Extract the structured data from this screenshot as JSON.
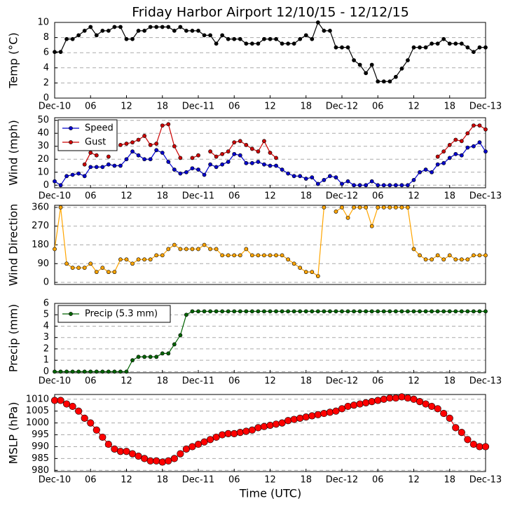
{
  "chart_data": [
    {
      "type": "line",
      "title": "Friday Harbor Airport 12/10/15 - 12/12/15",
      "ylabel": "Temp (°C)",
      "x": [
        0,
        1,
        2,
        3,
        4,
        5,
        6,
        7,
        8,
        9,
        10,
        11,
        12,
        13,
        14,
        15,
        16,
        17,
        18,
        19,
        20,
        21,
        22,
        23,
        24,
        25,
        26,
        27,
        28,
        29,
        30,
        31,
        32,
        33,
        34,
        35,
        36,
        37,
        38,
        39,
        40,
        41,
        42,
        43,
        44,
        45,
        46,
        47,
        48,
        49,
        50,
        51,
        52,
        53,
        54,
        55,
        56,
        57,
        58,
        59,
        60,
        61,
        62,
        63,
        64,
        65,
        66,
        67,
        68,
        69,
        70,
        71,
        72
      ],
      "series": [
        {
          "name": "Temp",
          "color": "#000000",
          "values": [
            6.1,
            6.1,
            7.8,
            7.8,
            8.3,
            8.9,
            9.4,
            8.3,
            8.9,
            8.9,
            9.4,
            9.4,
            7.8,
            7.8,
            8.9,
            8.9,
            9.4,
            9.4,
            9.4,
            9.4,
            8.9,
            9.4,
            8.9,
            8.9,
            8.9,
            8.3,
            8.3,
            7.2,
            8.3,
            7.8,
            7.8,
            7.8,
            7.2,
            7.2,
            7.2,
            7.8,
            7.8,
            7.8,
            7.2,
            7.2,
            7.2,
            7.8,
            8.3,
            7.8,
            10,
            8.9,
            8.9,
            6.7,
            6.7,
            6.7,
            5,
            4.4,
            3.3,
            4.4,
            2.2,
            2.2,
            2.2,
            2.8,
            3.9,
            5,
            6.7,
            6.7,
            6.7,
            7.2,
            7.2,
            7.8,
            7.2,
            7.2,
            7.2,
            6.7,
            6.1,
            6.7,
            6.7
          ]
        }
      ],
      "xlim": [
        0,
        72
      ],
      "xticks": [
        {
          "value": 0,
          "label": "Dec-10"
        },
        {
          "value": 6,
          "label": "06"
        },
        12,
        18,
        {
          "value": 24,
          "label": "Dec-11"
        },
        {
          "value": 30,
          "label": "06"
        },
        {
          "value": 36,
          "label": "12"
        },
        {
          "value": 42,
          "label": "18"
        },
        {
          "value": 48,
          "label": "Dec-12"
        },
        {
          "value": 54,
          "label": "06"
        },
        {
          "value": 60,
          "label": "12"
        },
        {
          "value": 66,
          "label": "18"
        },
        {
          "value": 72,
          "label": "Dec-13"
        }
      ],
      "ylim": [
        0,
        10
      ],
      "yticks": [
        0,
        2,
        4,
        6,
        8,
        10
      ],
      "grid": true
    },
    {
      "type": "line",
      "ylabel": "Wind (mph)",
      "x": [
        0,
        1,
        2,
        3,
        4,
        5,
        6,
        7,
        8,
        9,
        10,
        11,
        12,
        13,
        14,
        15,
        16,
        17,
        18,
        19,
        20,
        21,
        22,
        23,
        24,
        25,
        26,
        27,
        28,
        29,
        30,
        31,
        32,
        33,
        34,
        35,
        36,
        37,
        38,
        39,
        40,
        41,
        42,
        43,
        44,
        45,
        46,
        47,
        48,
        49,
        50,
        51,
        52,
        53,
        54,
        55,
        56,
        57,
        58,
        59,
        60,
        61,
        62,
        63,
        64,
        65,
        66,
        67,
        68,
        69,
        70,
        71,
        72
      ],
      "series": [
        {
          "name": "Speed",
          "color": "#0000cc",
          "values": [
            3,
            0,
            7,
            8,
            9,
            7,
            14,
            14,
            14,
            16,
            15,
            15,
            20,
            26,
            23,
            20,
            20,
            27,
            25,
            18,
            12,
            9,
            10,
            13,
            12,
            8,
            16,
            14,
            16,
            18,
            24,
            23,
            17,
            17,
            18,
            16,
            15,
            15,
            12,
            9,
            7,
            7,
            5,
            6,
            1,
            4,
            7,
            6,
            1,
            3,
            0,
            0,
            0,
            3,
            0,
            0,
            0,
            0,
            0,
            0,
            4,
            10,
            12,
            10,
            16,
            17,
            21,
            24,
            23,
            29,
            30,
            33,
            26
          ]
        },
        {
          "name": "Gust",
          "color": "#cc0000",
          "values": [
            null,
            null,
            null,
            null,
            null,
            16,
            25,
            23,
            null,
            22,
            null,
            31,
            32,
            33,
            35,
            38,
            31,
            32,
            46,
            47,
            30,
            21,
            null,
            21,
            23,
            null,
            26,
            22,
            24,
            26,
            33,
            34,
            31,
            28,
            26,
            34,
            25,
            21,
            null,
            null,
            null,
            null,
            null,
            null,
            null,
            null,
            null,
            null,
            null,
            null,
            null,
            null,
            null,
            null,
            null,
            null,
            null,
            null,
            null,
            null,
            null,
            null,
            null,
            null,
            22,
            26,
            31,
            35,
            34,
            40,
            46,
            46,
            43
          ]
        }
      ],
      "legend": "upper left",
      "xlim": [
        0,
        72
      ],
      "xticks": [
        {
          "value": 0,
          "label": "Dec-10"
        },
        {
          "value": 6,
          "label": "06"
        },
        12,
        18,
        {
          "value": 24,
          "label": "Dec-11"
        },
        {
          "value": 30,
          "label": "06"
        },
        {
          "value": 36,
          "label": "12"
        },
        {
          "value": 42,
          "label": "18"
        },
        {
          "value": 48,
          "label": "Dec-12"
        },
        {
          "value": 54,
          "label": "06"
        },
        {
          "value": 60,
          "label": "12"
        },
        {
          "value": 66,
          "label": "18"
        },
        {
          "value": 72,
          "label": "Dec-13"
        }
      ],
      "ylim": [
        -2,
        52
      ],
      "yticks": [
        0,
        10,
        20,
        30,
        40,
        50
      ],
      "grid": true
    },
    {
      "type": "line",
      "ylabel": "Wind Direction",
      "x": [
        0,
        1,
        2,
        3,
        4,
        5,
        6,
        7,
        8,
        9,
        10,
        11,
        12,
        13,
        14,
        15,
        16,
        17,
        18,
        19,
        20,
        21,
        22,
        23,
        24,
        25,
        26,
        27,
        28,
        29,
        30,
        31,
        32,
        33,
        34,
        35,
        36,
        37,
        38,
        39,
        40,
        41,
        42,
        43,
        44,
        45,
        46,
        47,
        48,
        49,
        50,
        51,
        52,
        53,
        54,
        55,
        56,
        57,
        58,
        59,
        60,
        61,
        62,
        63,
        64,
        65,
        66,
        67,
        68,
        69,
        70,
        71,
        72
      ],
      "series": [
        {
          "name": "Direction",
          "color": "#ffa500",
          "values": [
            160,
            360,
            90,
            70,
            70,
            70,
            90,
            50,
            70,
            50,
            50,
            110,
            110,
            90,
            110,
            110,
            110,
            130,
            130,
            160,
            180,
            160,
            160,
            160,
            160,
            180,
            160,
            160,
            130,
            130,
            130,
            130,
            160,
            130,
            130,
            130,
            130,
            130,
            130,
            110,
            90,
            70,
            50,
            50,
            30,
            360,
            null,
            340,
            360,
            310,
            360,
            360,
            360,
            270,
            360,
            360,
            360,
            360,
            360,
            360,
            160,
            130,
            110,
            110,
            130,
            110,
            130,
            110,
            110,
            110,
            130,
            130,
            130
          ]
        }
      ],
      "xlim": [
        0,
        72
      ],
      "ylim": [
        -10,
        370
      ],
      "yticks": [
        0,
        90,
        180,
        270,
        360
      ],
      "grid": true
    },
    {
      "type": "line",
      "ylabel": "Precip (mm)",
      "x": [
        0,
        1,
        2,
        3,
        4,
        5,
        6,
        7,
        8,
        9,
        10,
        11,
        12,
        13,
        14,
        15,
        16,
        17,
        18,
        19,
        20,
        21,
        22,
        23,
        24,
        25,
        26,
        27,
        28,
        29,
        30,
        31,
        32,
        33,
        34,
        35,
        36,
        37,
        38,
        39,
        40,
        41,
        42,
        43,
        44,
        45,
        46,
        47,
        48,
        49,
        50,
        51,
        52,
        53,
        54,
        55,
        56,
        57,
        58,
        59,
        60,
        61,
        62,
        63,
        64,
        65,
        66,
        67,
        68,
        69,
        70,
        71,
        72
      ],
      "series": [
        {
          "name": "Precip (5.3 mm)",
          "color": "#006400",
          "values": [
            0,
            0,
            0,
            0,
            0,
            0,
            0,
            0,
            0,
            0,
            0,
            0,
            0,
            1,
            1.3,
            1.3,
            1.3,
            1.3,
            1.6,
            1.6,
            2.4,
            3.2,
            5,
            5.3,
            5.3,
            5.3,
            5.3,
            5.3,
            5.3,
            5.3,
            5.3,
            5.3,
            5.3,
            5.3,
            5.3,
            5.3,
            5.3,
            5.3,
            5.3,
            5.3,
            5.3,
            5.3,
            5.3,
            5.3,
            5.3,
            5.3,
            5.3,
            5.3,
            5.3,
            5.3,
            5.3,
            5.3,
            5.3,
            5.3,
            5.3,
            5.3,
            5.3,
            5.3,
            5.3,
            5.3,
            5.3,
            5.3,
            5.3,
            5.3,
            5.3,
            5.3,
            5.3,
            5.3,
            5.3,
            5.3,
            5.3,
            5.3,
            5.3
          ]
        }
      ],
      "legend": "upper left",
      "xlim": [
        0,
        72
      ],
      "xticks": [
        {
          "value": 0,
          "label": "Dec-10"
        },
        {
          "value": 6,
          "label": "06"
        },
        12,
        18,
        {
          "value": 24,
          "label": "Dec-11"
        },
        {
          "value": 30,
          "label": "06"
        },
        {
          "value": 36,
          "label": "12"
        },
        {
          "value": 42,
          "label": "18"
        },
        {
          "value": 48,
          "label": "Dec-12"
        },
        {
          "value": 54,
          "label": "06"
        },
        {
          "value": 60,
          "label": "12"
        },
        {
          "value": 66,
          "label": "18"
        },
        {
          "value": 72,
          "label": "Dec-13"
        }
      ],
      "ylim": [
        -0.1,
        6
      ],
      "yticks": [
        0,
        1,
        2,
        3,
        4,
        5,
        6
      ],
      "grid": true
    },
    {
      "type": "line",
      "ylabel": "MSLP (hPa)",
      "xlabel": "Time (UTC)",
      "x": [
        0,
        1,
        2,
        3,
        4,
        5,
        6,
        7,
        8,
        9,
        10,
        11,
        12,
        13,
        14,
        15,
        16,
        17,
        18,
        19,
        20,
        21,
        22,
        23,
        24,
        25,
        26,
        27,
        28,
        29,
        30,
        31,
        32,
        33,
        34,
        35,
        36,
        37,
        38,
        39,
        40,
        41,
        42,
        43,
        44,
        45,
        46,
        47,
        48,
        49,
        50,
        51,
        52,
        53,
        54,
        55,
        56,
        57,
        58,
        59,
        60,
        61,
        62,
        63,
        64,
        65,
        66,
        67,
        68,
        69,
        70,
        71,
        72
      ],
      "series": [
        {
          "name": "MSLP",
          "color": "#ff0000",
          "values": [
            1009.5,
            1009.5,
            1008,
            1007,
            1005,
            1002,
            1000,
            997,
            994,
            991,
            989,
            988,
            988,
            987,
            986,
            985,
            984,
            984,
            983.5,
            984,
            985,
            987,
            989,
            990,
            991,
            992,
            993,
            994,
            995,
            995.5,
            995.5,
            996,
            996.5,
            997,
            998,
            998.5,
            999,
            999.5,
            1000,
            1001,
            1001.5,
            1002,
            1002.5,
            1003,
            1003.5,
            1004,
            1004.5,
            1005,
            1006,
            1007,
            1007.5,
            1008,
            1008.5,
            1009,
            1009.5,
            1010,
            1010.5,
            1010.5,
            1011,
            1010.5,
            1010,
            1009,
            1008,
            1007,
            1006,
            1004,
            1002,
            998,
            996,
            993,
            991,
            990,
            990
          ]
        }
      ],
      "xlim": [
        0,
        72
      ],
      "xticks": [
        {
          "value": 0,
          "label": "Dec-10"
        },
        {
          "value": 6,
          "label": "06"
        },
        12,
        18,
        {
          "value": 24,
          "label": "Dec-11"
        },
        {
          "value": 30,
          "label": "06"
        },
        {
          "value": 36,
          "label": "12"
        },
        {
          "value": 42,
          "label": "18"
        },
        {
          "value": 48,
          "label": "Dec-12"
        },
        {
          "value": 54,
          "label": "06"
        },
        {
          "value": 60,
          "label": "12"
        },
        {
          "value": 66,
          "label": "18"
        },
        {
          "value": 72,
          "label": "Dec-13"
        }
      ],
      "ylim": [
        979.5,
        1012
      ],
      "yticks": [
        980,
        985,
        990,
        995,
        1000,
        1005,
        1010
      ],
      "grid": true
    }
  ]
}
